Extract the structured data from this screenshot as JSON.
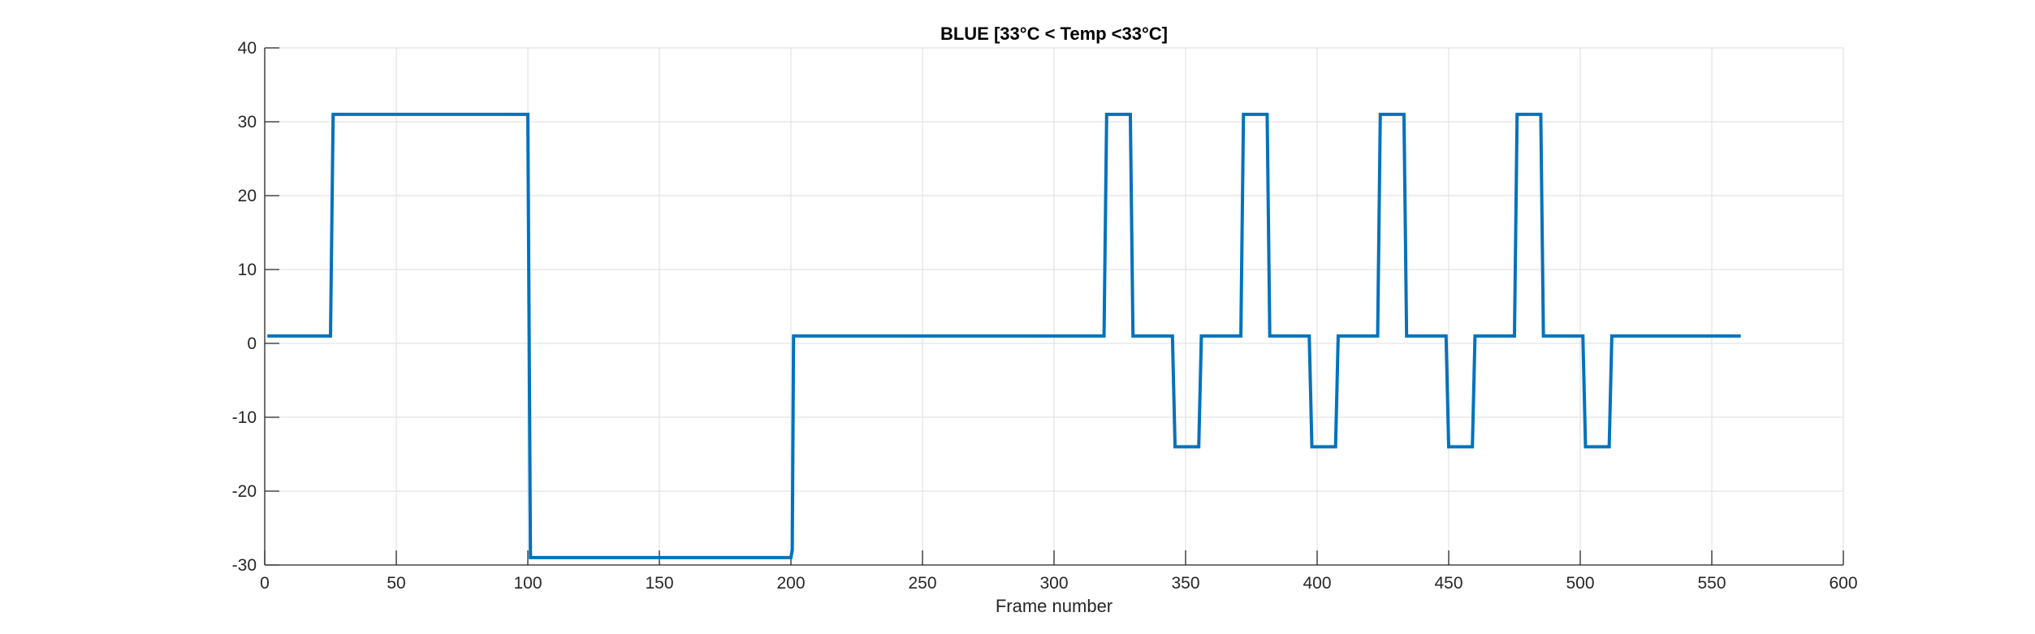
{
  "chart_data": {
    "type": "line",
    "title": "BLUE [33°C < Temp <33°C]",
    "xlabel": "Frame number",
    "ylabel": "",
    "xlim": [
      0,
      600
    ],
    "ylim": [
      -30,
      40
    ],
    "xticks": [
      0,
      50,
      100,
      150,
      200,
      250,
      300,
      350,
      400,
      450,
      500,
      550,
      600
    ],
    "yticks": [
      -30,
      -20,
      -10,
      0,
      10,
      20,
      30,
      40
    ],
    "grid": true,
    "legend": "none",
    "series": [
      {
        "color": "#0072BD",
        "x": [
          1,
          25,
          26,
          100,
          101,
          200,
          200.5,
          201,
          319,
          320,
          329,
          330,
          345,
          346,
          355,
          356,
          371,
          372,
          381,
          382,
          397,
          398,
          407,
          408,
          423,
          424,
          433,
          434,
          449,
          450,
          459,
          460,
          475,
          476,
          485,
          486,
          501,
          502,
          511,
          512,
          561
        ],
        "y": [
          1,
          1,
          31,
          31,
          -29,
          -29,
          -28,
          1,
          1,
          31,
          31,
          1,
          1,
          -14,
          -14,
          1,
          1,
          31,
          31,
          1,
          1,
          -14,
          -14,
          1,
          1,
          31,
          31,
          1,
          1,
          -14,
          -14,
          1,
          1,
          31,
          31,
          1,
          1,
          -14,
          -14,
          1,
          1
        ]
      }
    ]
  }
}
